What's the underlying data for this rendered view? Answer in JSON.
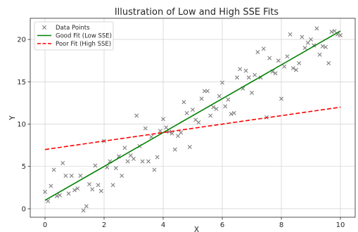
{
  "chart_data": {
    "type": "scatter",
    "title": "Illustration of Low and High SSE Fits",
    "xlabel": "X",
    "ylabel": "Y",
    "xlim": [
      -0.5,
      10.5
    ],
    "ylim": [
      -1,
      22.5
    ],
    "xticks": [
      0,
      2,
      4,
      6,
      8,
      10
    ],
    "yticks": [
      0,
      5,
      10,
      15,
      20
    ],
    "grid": true,
    "legend_position": "top-left",
    "series": [
      {
        "name": "Data Points",
        "kind": "scatter",
        "marker": "x",
        "color": "#7f7f7f",
        "points": [
          [
            0.0,
            2.0
          ],
          [
            0.1,
            0.9
          ],
          [
            0.2,
            2.7
          ],
          [
            0.3,
            4.6
          ],
          [
            0.4,
            1.5
          ],
          [
            0.5,
            1.6
          ],
          [
            0.6,
            5.4
          ],
          [
            0.7,
            3.9
          ],
          [
            0.8,
            1.8
          ],
          [
            0.9,
            3.9
          ],
          [
            1.0,
            2.2
          ],
          [
            1.1,
            2.4
          ],
          [
            1.2,
            3.9
          ],
          [
            1.3,
            -0.2
          ],
          [
            1.4,
            0.3
          ],
          [
            1.5,
            2.9
          ],
          [
            1.6,
            2.3
          ],
          [
            1.7,
            5.1
          ],
          [
            1.8,
            2.8
          ],
          [
            1.9,
            2.1
          ],
          [
            2.0,
            8.0
          ],
          [
            2.1,
            4.9
          ],
          [
            2.2,
            5.6
          ],
          [
            2.3,
            2.8
          ],
          [
            2.4,
            4.8
          ],
          [
            2.5,
            6.2
          ],
          [
            2.6,
            3.9
          ],
          [
            2.7,
            7.2
          ],
          [
            2.8,
            5.6
          ],
          [
            2.9,
            6.3
          ],
          [
            3.0,
            5.9
          ],
          [
            3.1,
            11.0
          ],
          [
            3.2,
            7.4
          ],
          [
            3.3,
            5.6
          ],
          [
            3.4,
            9.5
          ],
          [
            3.5,
            5.6
          ],
          [
            3.6,
            8.5
          ],
          [
            3.7,
            4.6
          ],
          [
            3.8,
            6.1
          ],
          [
            3.9,
            9.2
          ],
          [
            4.0,
            10.6
          ],
          [
            4.1,
            9.6
          ],
          [
            4.2,
            9.1
          ],
          [
            4.3,
            8.9
          ],
          [
            4.4,
            7.0
          ],
          [
            4.5,
            8.6
          ],
          [
            4.6,
            9.0
          ],
          [
            4.7,
            12.6
          ],
          [
            4.8,
            11.3
          ],
          [
            4.9,
            7.3
          ],
          [
            5.0,
            11.7
          ],
          [
            5.1,
            10.5
          ],
          [
            5.2,
            10.2
          ],
          [
            5.3,
            13.0
          ],
          [
            5.4,
            13.9
          ],
          [
            5.5,
            13.9
          ],
          [
            5.6,
            11.0
          ],
          [
            5.7,
            12.0
          ],
          [
            5.8,
            11.8
          ],
          [
            5.9,
            13.3
          ],
          [
            6.0,
            14.9
          ],
          [
            6.1,
            12.1
          ],
          [
            6.2,
            12.9
          ],
          [
            6.3,
            11.2
          ],
          [
            6.4,
            11.3
          ],
          [
            6.5,
            15.5
          ],
          [
            6.6,
            16.5
          ],
          [
            6.7,
            14.2
          ],
          [
            6.8,
            16.3
          ],
          [
            6.9,
            15.5
          ],
          [
            7.0,
            13.7
          ],
          [
            7.1,
            15.8
          ],
          [
            7.2,
            18.5
          ],
          [
            7.3,
            15.5
          ],
          [
            7.4,
            18.9
          ],
          [
            7.5,
            10.8
          ],
          [
            7.6,
            17.8
          ],
          [
            7.7,
            16.2
          ],
          [
            7.8,
            16.0
          ],
          [
            7.9,
            17.5
          ],
          [
            8.0,
            13.0
          ],
          [
            8.1,
            16.8
          ],
          [
            8.2,
            18.0
          ],
          [
            8.3,
            20.6
          ],
          [
            8.4,
            16.6
          ],
          [
            8.5,
            16.4
          ],
          [
            8.6,
            17.2
          ],
          [
            8.7,
            20.3
          ],
          [
            8.8,
            19.0
          ],
          [
            8.9,
            19.6
          ],
          [
            9.0,
            20.0
          ],
          [
            9.1,
            19.3
          ],
          [
            9.2,
            21.3
          ],
          [
            9.3,
            18.2
          ],
          [
            9.4,
            19.2
          ],
          [
            9.5,
            19.1
          ],
          [
            9.6,
            17.2
          ],
          [
            9.7,
            20.9
          ],
          [
            9.8,
            21.0
          ],
          [
            9.9,
            20.6
          ],
          [
            10.0,
            20.5
          ]
        ]
      },
      {
        "name": "Good Fit (Low SSE)",
        "kind": "line",
        "color": "#008000",
        "dash": "solid",
        "points": [
          [
            0,
            1.0
          ],
          [
            10,
            21.0
          ]
        ]
      },
      {
        "name": "Poor Fit (High SSE)",
        "kind": "line",
        "color": "#ff0000",
        "dash": "dashed",
        "points": [
          [
            0,
            7.0
          ],
          [
            10,
            12.0
          ]
        ]
      }
    ]
  }
}
